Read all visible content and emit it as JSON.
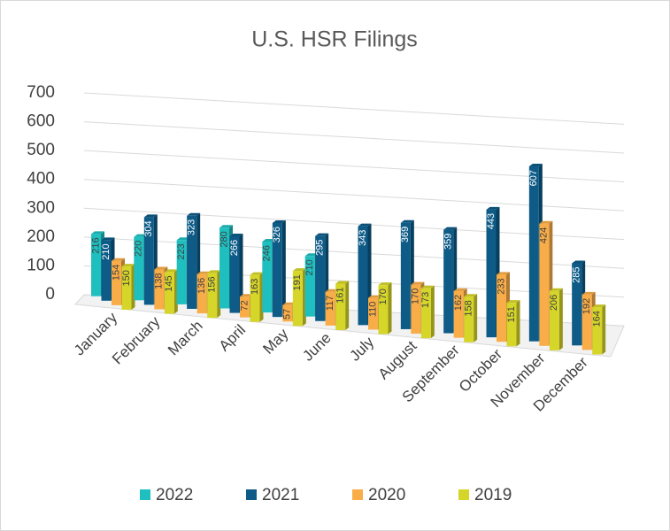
{
  "chart_data": {
    "type": "bar3d",
    "title": "U.S. HSR Filings",
    "categories": [
      "January",
      "February",
      "March",
      "April",
      "May",
      "June",
      "July",
      "August",
      "September",
      "October",
      "November",
      "December"
    ],
    "series": [
      {
        "name": "2022",
        "color": "#1fbfbf",
        "values": [
          216,
          220,
          223,
          280,
          246,
          210,
          null,
          null,
          null,
          null,
          null,
          null
        ]
      },
      {
        "name": "2021",
        "color": "#0e5b87",
        "values": [
          210,
          304,
          323,
          266,
          326,
          295,
          343,
          369,
          359,
          443,
          607,
          285
        ]
      },
      {
        "name": "2020",
        "color": "#f9ad48",
        "values": [
          154,
          138,
          136,
          72,
          57,
          117,
          110,
          170,
          162,
          233,
          424,
          192
        ]
      },
      {
        "name": "2019",
        "color": "#d6d52a",
        "values": [
          150,
          145,
          156,
          163,
          191,
          161,
          170,
          173,
          158,
          151,
          206,
          164
        ]
      }
    ],
    "ylim": [
      0,
      700
    ],
    "yticks": [
      0,
      100,
      200,
      300,
      400,
      500,
      600,
      700
    ],
    "grid": true,
    "legend": "bottom"
  }
}
